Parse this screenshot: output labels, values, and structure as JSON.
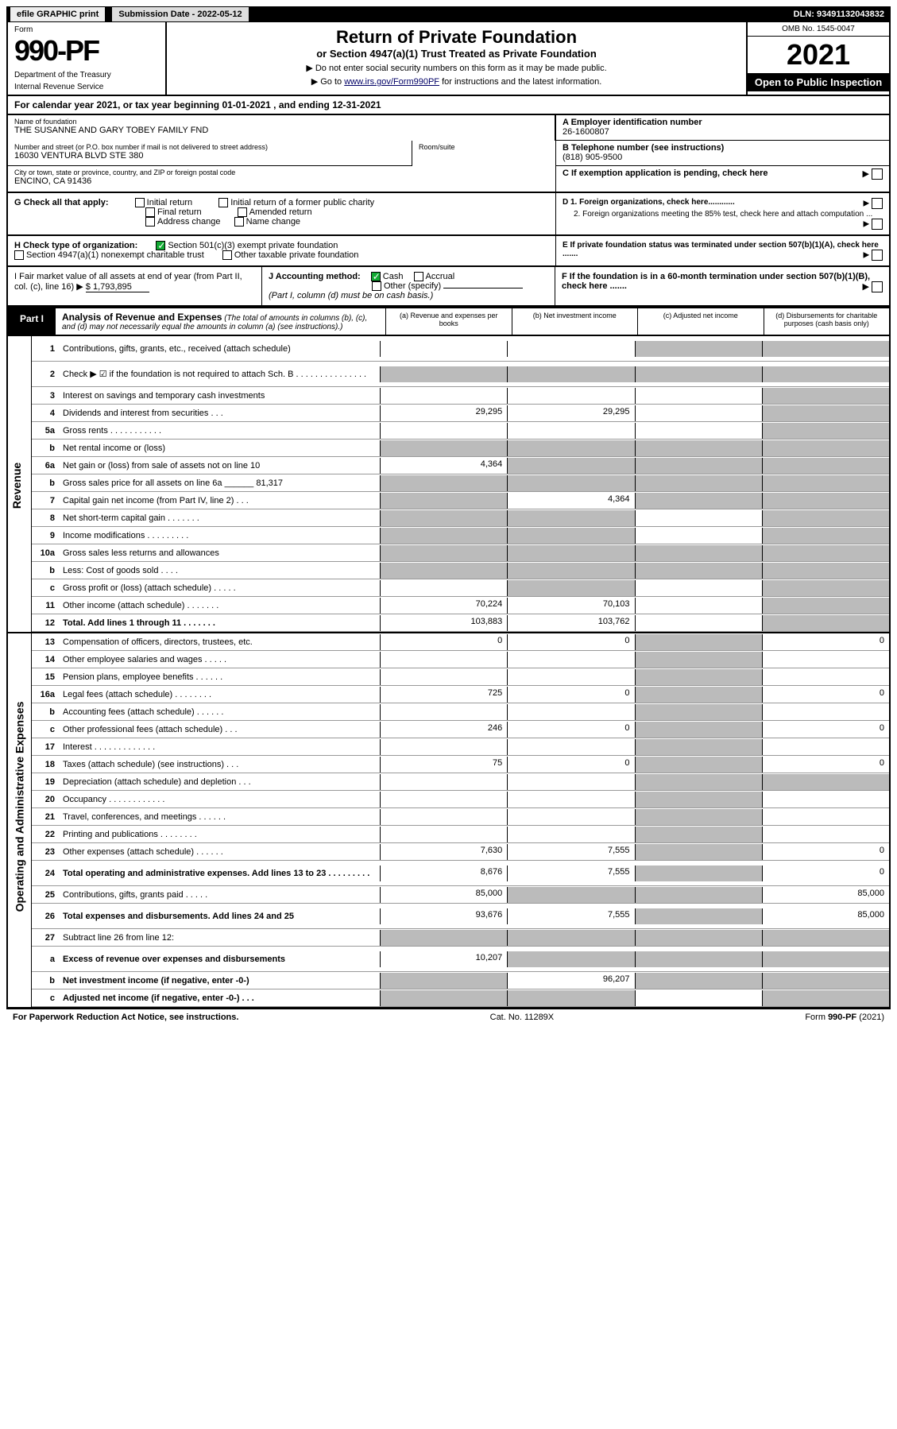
{
  "topbar": {
    "efile": "efile GRAPHIC print",
    "submission_label": "Submission Date - 2022-05-12",
    "dln": "DLN: 93491132043832"
  },
  "header": {
    "form_label": "Form",
    "form_no": "990-PF",
    "dept": "Department of the Treasury",
    "irs": "Internal Revenue Service",
    "title": "Return of Private Foundation",
    "subtitle": "or Section 4947(a)(1) Trust Treated as Private Foundation",
    "note1": "▶ Do not enter social security numbers on this form as it may be made public.",
    "note2_pre": "▶ Go to ",
    "note2_link": "www.irs.gov/Form990PF",
    "note2_post": " for instructions and the latest information.",
    "omb": "OMB No. 1545-0047",
    "year": "2021",
    "open": "Open to Public Inspection"
  },
  "cal": {
    "text_pre": "For calendar year 2021, or tax year beginning ",
    "begin": "01-01-2021",
    "text_mid": " , and ending ",
    "end": "12-31-2021"
  },
  "info": {
    "name_label": "Name of foundation",
    "name": "THE SUSANNE AND GARY TOBEY FAMILY FND",
    "addr_label": "Number and street (or P.O. box number if mail is not delivered to street address)",
    "addr": "16030 VENTURA BLVD STE 380",
    "room_label": "Room/suite",
    "city_label": "City or town, state or province, country, and ZIP or foreign postal code",
    "city": "ENCINO, CA  91436",
    "ein_label": "A Employer identification number",
    "ein": "26-1600807",
    "tel_label": "B Telephone number (see instructions)",
    "tel": "(818) 905-9500",
    "c_label": "C If exemption application is pending, check here"
  },
  "g": {
    "label": "G Check all that apply:",
    "opts": [
      "Initial return",
      "Final return",
      "Address change",
      "Initial return of a former public charity",
      "Amended return",
      "Name change"
    ],
    "d1": "D 1. Foreign organizations, check here............",
    "d2": "2. Foreign organizations meeting the 85% test, check here and attach computation ...",
    "e": "E  If private foundation status was terminated under section 507(b)(1)(A), check here ......."
  },
  "h": {
    "label": "H Check type of organization:",
    "opt1": "Section 501(c)(3) exempt private foundation",
    "opt2": "Section 4947(a)(1) nonexempt charitable trust",
    "opt3": "Other taxable private foundation"
  },
  "i": {
    "label": "I Fair market value of all assets at end of year (from Part II, col. (c), line 16) ",
    "arrow": "▶",
    "value": "$  1,793,895"
  },
  "j": {
    "label": "J Accounting method:",
    "cash": "Cash",
    "accrual": "Accrual",
    "other": "Other (specify)",
    "note": "(Part I, column (d) must be on cash basis.)"
  },
  "f": {
    "label": "F  If the foundation is in a 60-month termination under section 507(b)(1)(B), check here ......."
  },
  "part1": {
    "label": "Part I",
    "title": "Analysis of Revenue and Expenses",
    "desc": " (The total of amounts in columns (b), (c), and (d) may not necessarily equal the amounts in column (a) (see instructions).)",
    "cols": {
      "a": "(a) Revenue and expenses per books",
      "b": "(b) Net investment income",
      "c": "(c) Adjusted net income",
      "d": "(d) Disbursements for charitable purposes (cash basis only)"
    }
  },
  "sections": {
    "revenue": "Revenue",
    "expenses": "Operating and Administrative Expenses"
  },
  "rows": [
    {
      "n": "1",
      "d": "Contributions, gifts, grants, etc., received (attach schedule)",
      "a": "",
      "b": "",
      "c": "",
      "dd": "",
      "gA": false,
      "gB": false,
      "gC": true,
      "gD": true,
      "tall": true
    },
    {
      "n": "2",
      "d": "Check ▶ ☑ if the foundation is not required to attach Sch. B  .   .   .   .   .   .   .   .   .   .   .   .   .   .   .",
      "a": "",
      "b": "",
      "c": "",
      "dd": "",
      "gA": true,
      "gB": true,
      "gC": true,
      "gD": true,
      "tall": true
    },
    {
      "n": "3",
      "d": "Interest on savings and temporary cash investments",
      "a": "",
      "b": "",
      "c": "",
      "dd": "",
      "gA": false,
      "gB": false,
      "gC": false,
      "gD": true
    },
    {
      "n": "4",
      "d": "Dividends and interest from securities   .   .   .",
      "a": "29,295",
      "b": "29,295",
      "c": "",
      "dd": "",
      "gA": false,
      "gB": false,
      "gC": false,
      "gD": true
    },
    {
      "n": "5a",
      "d": "Gross rents   .   .   .   .   .   .   .   .   .   .   .",
      "a": "",
      "b": "",
      "c": "",
      "dd": "",
      "gA": false,
      "gB": false,
      "gC": false,
      "gD": true
    },
    {
      "n": "b",
      "d": "Net rental income or (loss)  ",
      "a": "",
      "b": "",
      "c": "",
      "dd": "",
      "gA": true,
      "gB": true,
      "gC": true,
      "gD": true
    },
    {
      "n": "6a",
      "d": "Net gain or (loss) from sale of assets not on line 10",
      "a": "4,364",
      "b": "",
      "c": "",
      "dd": "",
      "gA": false,
      "gB": true,
      "gC": true,
      "gD": true
    },
    {
      "n": "b",
      "d": "Gross sales price for all assets on line 6a ______ 81,317",
      "a": "",
      "b": "",
      "c": "",
      "dd": "",
      "gA": true,
      "gB": true,
      "gC": true,
      "gD": true
    },
    {
      "n": "7",
      "d": "Capital gain net income (from Part IV, line 2)   .   .   .",
      "a": "",
      "b": "4,364",
      "c": "",
      "dd": "",
      "gA": true,
      "gB": false,
      "gC": true,
      "gD": true
    },
    {
      "n": "8",
      "d": "Net short-term capital gain   .   .   .   .   .   .   .",
      "a": "",
      "b": "",
      "c": "",
      "dd": "",
      "gA": true,
      "gB": true,
      "gC": false,
      "gD": true
    },
    {
      "n": "9",
      "d": "Income modifications   .   .   .   .   .   .   .   .   .",
      "a": "",
      "b": "",
      "c": "",
      "dd": "",
      "gA": true,
      "gB": true,
      "gC": false,
      "gD": true
    },
    {
      "n": "10a",
      "d": "Gross sales less returns and allowances",
      "a": "",
      "b": "",
      "c": "",
      "dd": "",
      "gA": true,
      "gB": true,
      "gC": true,
      "gD": true
    },
    {
      "n": "b",
      "d": "Less: Cost of goods sold   .   .   .   .",
      "a": "",
      "b": "",
      "c": "",
      "dd": "",
      "gA": true,
      "gB": true,
      "gC": true,
      "gD": true
    },
    {
      "n": "c",
      "d": "Gross profit or (loss) (attach schedule)   .   .   .   .   .",
      "a": "",
      "b": "",
      "c": "",
      "dd": "",
      "gA": false,
      "gB": true,
      "gC": false,
      "gD": true
    },
    {
      "n": "11",
      "d": "Other income (attach schedule)   .   .   .   .   .   .   .",
      "a": "70,224",
      "b": "70,103",
      "c": "",
      "dd": "",
      "gA": false,
      "gB": false,
      "gC": false,
      "gD": true
    },
    {
      "n": "12",
      "d": "Total. Add lines 1 through 11   .   .   .   .   .   .   .",
      "a": "103,883",
      "b": "103,762",
      "c": "",
      "dd": "",
      "gA": false,
      "gB": false,
      "gC": false,
      "gD": true,
      "bold": true
    },
    {
      "n": "13",
      "d": "Compensation of officers, directors, trustees, etc.",
      "a": "0",
      "b": "0",
      "c": "",
      "dd": "0",
      "gA": false,
      "gB": false,
      "gC": true,
      "gD": false
    },
    {
      "n": "14",
      "d": "Other employee salaries and wages   .   .   .   .   .",
      "a": "",
      "b": "",
      "c": "",
      "dd": "",
      "gA": false,
      "gB": false,
      "gC": true,
      "gD": false
    },
    {
      "n": "15",
      "d": "Pension plans, employee benefits   .   .   .   .   .   .",
      "a": "",
      "b": "",
      "c": "",
      "dd": "",
      "gA": false,
      "gB": false,
      "gC": true,
      "gD": false
    },
    {
      "n": "16a",
      "d": "Legal fees (attach schedule)  .   .   .   .   .   .   .   .",
      "a": "725",
      "b": "0",
      "c": "",
      "dd": "0",
      "gA": false,
      "gB": false,
      "gC": true,
      "gD": false
    },
    {
      "n": "b",
      "d": "Accounting fees (attach schedule)   .   .   .   .   .   .",
      "a": "",
      "b": "",
      "c": "",
      "dd": "",
      "gA": false,
      "gB": false,
      "gC": true,
      "gD": false
    },
    {
      "n": "c",
      "d": "Other professional fees (attach schedule)   .   .   .",
      "a": "246",
      "b": "0",
      "c": "",
      "dd": "0",
      "gA": false,
      "gB": false,
      "gC": true,
      "gD": false
    },
    {
      "n": "17",
      "d": "Interest   .   .   .   .   .   .   .   .   .   .   .   .   .",
      "a": "",
      "b": "",
      "c": "",
      "dd": "",
      "gA": false,
      "gB": false,
      "gC": true,
      "gD": false
    },
    {
      "n": "18",
      "d": "Taxes (attach schedule) (see instructions)   .   .   .",
      "a": "75",
      "b": "0",
      "c": "",
      "dd": "0",
      "gA": false,
      "gB": false,
      "gC": true,
      "gD": false
    },
    {
      "n": "19",
      "d": "Depreciation (attach schedule) and depletion   .   .   .",
      "a": "",
      "b": "",
      "c": "",
      "dd": "",
      "gA": false,
      "gB": false,
      "gC": true,
      "gD": true
    },
    {
      "n": "20",
      "d": "Occupancy   .   .   .   .   .   .   .   .   .   .   .   .",
      "a": "",
      "b": "",
      "c": "",
      "dd": "",
      "gA": false,
      "gB": false,
      "gC": true,
      "gD": false
    },
    {
      "n": "21",
      "d": "Travel, conferences, and meetings   .   .   .   .   .   .",
      "a": "",
      "b": "",
      "c": "",
      "dd": "",
      "gA": false,
      "gB": false,
      "gC": true,
      "gD": false
    },
    {
      "n": "22",
      "d": "Printing and publications   .   .   .   .   .   .   .   .",
      "a": "",
      "b": "",
      "c": "",
      "dd": "",
      "gA": false,
      "gB": false,
      "gC": true,
      "gD": false
    },
    {
      "n": "23",
      "d": "Other expenses (attach schedule)   .   .   .   .   .   .",
      "a": "7,630",
      "b": "7,555",
      "c": "",
      "dd": "0",
      "gA": false,
      "gB": false,
      "gC": true,
      "gD": false
    },
    {
      "n": "24",
      "d": "Total operating and administrative expenses. Add lines 13 to 23   .   .   .   .   .   .   .   .   .",
      "a": "8,676",
      "b": "7,555",
      "c": "",
      "dd": "0",
      "gA": false,
      "gB": false,
      "gC": true,
      "gD": false,
      "bold": true,
      "tall": true
    },
    {
      "n": "25",
      "d": "Contributions, gifts, grants paid   .   .   .   .   .",
      "a": "85,000",
      "b": "",
      "c": "",
      "dd": "85,000",
      "gA": false,
      "gB": true,
      "gC": true,
      "gD": false
    },
    {
      "n": "26",
      "d": "Total expenses and disbursements. Add lines 24 and 25",
      "a": "93,676",
      "b": "7,555",
      "c": "",
      "dd": "85,000",
      "gA": false,
      "gB": false,
      "gC": true,
      "gD": false,
      "bold": true,
      "tall": true
    },
    {
      "n": "27",
      "d": "Subtract line 26 from line 12:",
      "a": "",
      "b": "",
      "c": "",
      "dd": "",
      "gA": true,
      "gB": true,
      "gC": true,
      "gD": true
    },
    {
      "n": "a",
      "d": "Excess of revenue over expenses and disbursements",
      "a": "10,207",
      "b": "",
      "c": "",
      "dd": "",
      "gA": false,
      "gB": true,
      "gC": true,
      "gD": true,
      "bold": true,
      "tall": true
    },
    {
      "n": "b",
      "d": "Net investment income (if negative, enter -0-)",
      "a": "",
      "b": "96,207",
      "c": "",
      "dd": "",
      "gA": true,
      "gB": false,
      "gC": true,
      "gD": true,
      "bold": true
    },
    {
      "n": "c",
      "d": "Adjusted net income (if negative, enter -0-)   .   .   .",
      "a": "",
      "b": "",
      "c": "",
      "dd": "",
      "gA": true,
      "gB": true,
      "gC": false,
      "gD": true,
      "bold": true
    }
  ],
  "footer": {
    "left": "For Paperwork Reduction Act Notice, see instructions.",
    "mid": "Cat. No. 11289X",
    "right": "Form 990-PF (2021)"
  },
  "colors": {
    "grey": "#bbbbbb",
    "black": "#000000",
    "link": "#0000cc",
    "check": "#11aa33"
  }
}
